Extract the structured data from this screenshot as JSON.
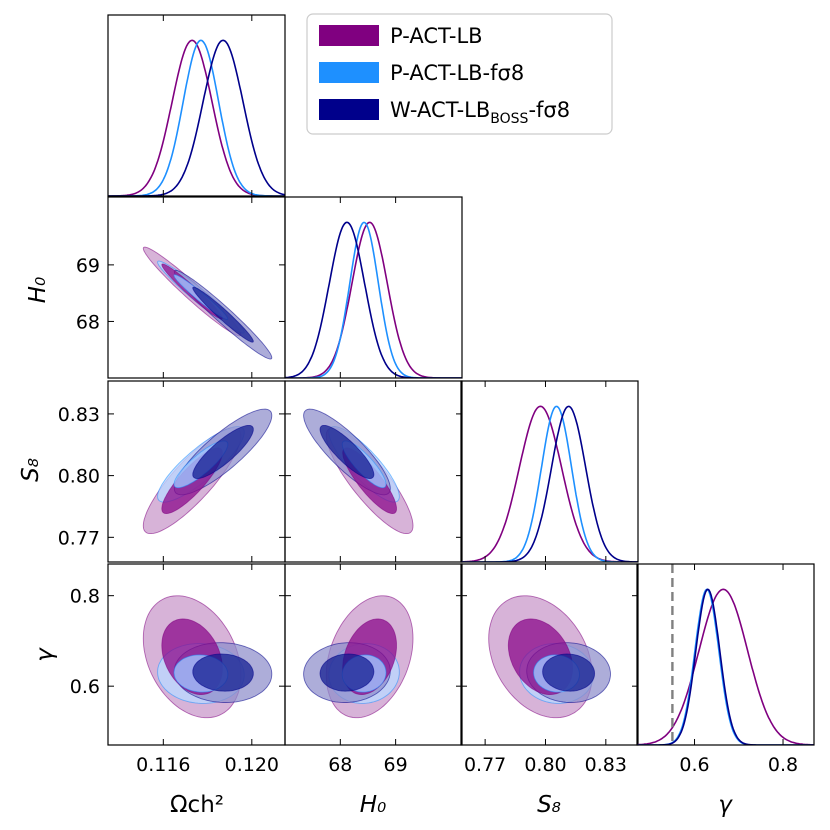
{
  "chart_data": {
    "type": "corner",
    "title": "",
    "parameters": [
      {
        "name": "omega_c_h2",
        "label": "Ωch²",
        "range": [
          0.1135,
          0.1215
        ],
        "ticks": [
          0.116,
          0.12
        ],
        "tick_labels": [
          "0.116",
          "0.120"
        ]
      },
      {
        "name": "H0",
        "label": "H₀",
        "range": [
          67.0,
          70.2
        ],
        "ticks": [
          68,
          69
        ],
        "tick_labels": [
          "68",
          "69"
        ]
      },
      {
        "name": "S8",
        "label": "S₈",
        "range": [
          0.758,
          0.846
        ],
        "ticks": [
          0.77,
          0.8,
          0.83
        ],
        "tick_labels": [
          "0.77",
          "0.80",
          "0.83"
        ]
      },
      {
        "name": "gamma",
        "label": "γ",
        "range": [
          0.47,
          0.87
        ],
        "ticks": [
          0.6,
          0.8
        ],
        "tick_labels": [
          "0.6",
          "0.8"
        ]
      }
    ],
    "legend": {
      "position": "top-right",
      "entries": [
        {
          "text": "P-ACT-LB",
          "color": "#800080"
        },
        {
          "text": "P-ACT-LB-fσ8",
          "color": "#1E90FF"
        },
        {
          "text": "W-ACT-LB",
          "subscript": "BOSS",
          "suffix": "-fσ8",
          "color": "#00008B"
        }
      ]
    },
    "series": [
      {
        "name": "P-ACT-LB",
        "line_color": "#800080",
        "outer_fill": "#C999CB",
        "inner_fill": "#8B0A8B",
        "fill_alpha": 0.75,
        "mean": [
          0.1173,
          68.53,
          0.7975,
          0.665
        ],
        "sigma": [
          0.0009,
          0.32,
          0.0105,
          0.055
        ],
        "corr": [
          [
            1,
            -0.97,
            0.85,
            -0.3
          ],
          [
            -0.97,
            1,
            -0.85,
            0.3
          ],
          [
            0.85,
            -0.85,
            1,
            -0.3
          ],
          [
            -0.3,
            0.3,
            -0.3,
            1
          ]
        ]
      },
      {
        "name": "P-ACT-LB-fσ8",
        "line_color": "#1E90FF",
        "outer_fill": "#BCD7FF",
        "inner_fill": "#9FC6FF",
        "fill_alpha": 0.8,
        "mean": [
          0.1177,
          68.43,
          0.8055,
          0.628
        ],
        "sigma": [
          0.0008,
          0.26,
          0.0075,
          0.027
        ],
        "corr": [
          [
            1,
            -0.97,
            0.85,
            -0.05
          ],
          [
            -0.97,
            1,
            -0.85,
            0.05
          ],
          [
            0.85,
            -0.85,
            1,
            -0.05
          ],
          [
            -0.05,
            0.05,
            -0.05,
            1
          ]
        ]
      },
      {
        "name": "W-ACT-LB_BOSS-fσ8",
        "line_color": "#00008B",
        "outer_fill": "#8E8ECA",
        "inner_fill": "#0F1B8F",
        "fill_alpha": 0.72,
        "mean": [
          0.1187,
          68.12,
          0.8115,
          0.63
        ],
        "sigma": [
          0.0009,
          0.32,
          0.0085,
          0.027
        ],
        "corr": [
          [
            1,
            -0.97,
            0.85,
            -0.05
          ],
          [
            -0.97,
            1,
            -0.85,
            0.05
          ],
          [
            0.85,
            -0.85,
            1,
            -0.05
          ],
          [
            -0.05,
            0.05,
            -0.05,
            1
          ]
        ]
      }
    ],
    "reference_lines": [
      {
        "parameter": "gamma",
        "value": 0.55,
        "style": "dashed",
        "color": "#808080"
      }
    ]
  }
}
